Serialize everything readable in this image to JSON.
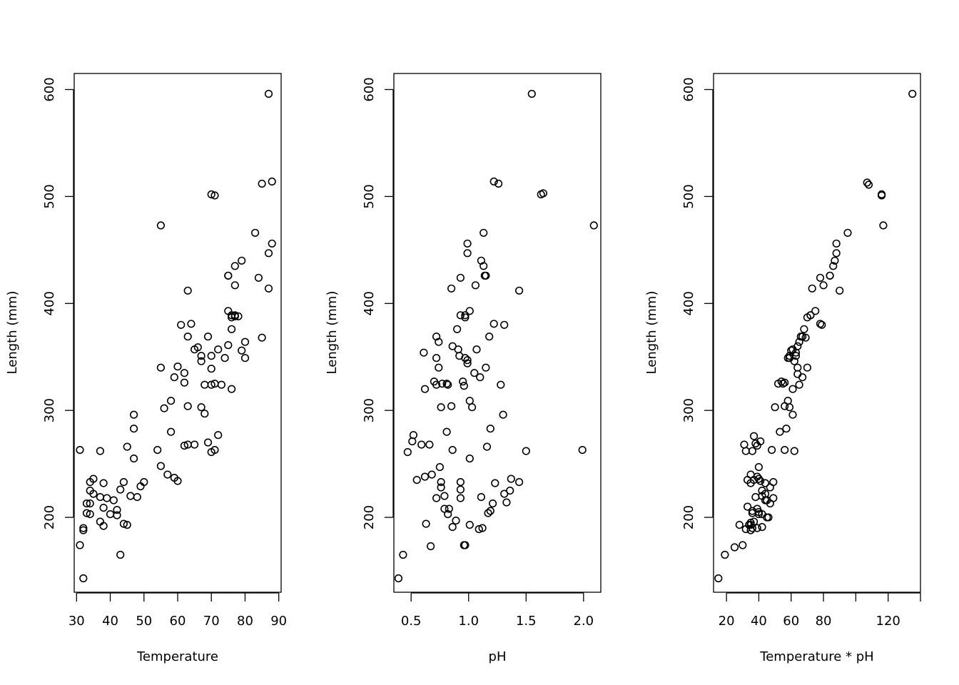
{
  "chart_data": [
    {
      "type": "scatter",
      "xlabel": "Temperature",
      "ylabel": "Length (mm)",
      "xlim": [
        29.3,
        90.7
      ],
      "ylim": [
        130,
        615
      ],
      "xticks": [
        30,
        40,
        50,
        60,
        70,
        80,
        90
      ],
      "xtick_labels": [
        "30",
        "40",
        "50",
        "60",
        "70",
        "80",
        "90"
      ],
      "yticks": [
        200,
        300,
        400,
        500,
        600
      ],
      "ytick_labels": [
        "200",
        "300",
        "400",
        "500",
        "600"
      ],
      "x": [
        87,
        70,
        71,
        55,
        88,
        85,
        83,
        88,
        87,
        79,
        77,
        75,
        75,
        84,
        77,
        87,
        63,
        75,
        77,
        76,
        76,
        64,
        61,
        76,
        80,
        69,
        85,
        78,
        63,
        77,
        66,
        65,
        72,
        70,
        75,
        74,
        80,
        79,
        67,
        58,
        60,
        62,
        67,
        70,
        76,
        71,
        70,
        73,
        68,
        67,
        55,
        59,
        62,
        63,
        58,
        56,
        68,
        47,
        47,
        31,
        54,
        45,
        37,
        70,
        72,
        69,
        63,
        62,
        71,
        65,
        50,
        60,
        55,
        46,
        44,
        57,
        59,
        35,
        38,
        41,
        43,
        48,
        34,
        34,
        37,
        45,
        47,
        49,
        39,
        35,
        33,
        34,
        38,
        32,
        37,
        34,
        33,
        40,
        32,
        42,
        42,
        44,
        31,
        38,
        43,
        32
      ],
      "y": [
        596,
        502,
        501,
        473,
        514,
        512,
        466,
        456,
        447,
        440,
        435,
        426,
        426,
        424,
        417,
        414,
        412,
        393,
        389,
        389,
        387,
        381,
        380,
        376,
        364,
        369,
        368,
        388,
        369,
        388,
        359,
        357,
        357,
        351,
        361,
        349,
        349,
        356,
        351,
        309,
        341,
        335,
        346,
        339,
        320,
        325,
        324,
        324,
        324,
        303,
        340,
        331,
        326,
        304,
        280,
        302,
        297,
        296,
        283,
        263,
        263,
        266,
        262,
        261,
        277,
        270,
        268,
        267,
        263,
        268,
        233,
        234,
        248,
        220,
        233,
        240,
        237,
        236,
        232,
        216,
        226,
        219,
        233,
        225,
        219,
        193,
        255,
        229,
        218,
        222,
        213,
        213,
        209,
        190,
        196,
        203,
        204,
        203,
        188,
        207,
        202,
        194,
        174,
        192,
        165,
        143
      ]
    },
    {
      "type": "scatter",
      "xlabel": "pH",
      "ylabel": "Length (mm)",
      "xlim": [
        0.35,
        2.15
      ],
      "ylim": [
        130,
        615
      ],
      "xticks": [
        0.5,
        1.0,
        1.5,
        2.0
      ],
      "xtick_labels": [
        "0.5",
        "1.0",
        "1.5",
        "2.0"
      ],
      "yticks": [
        200,
        300,
        400,
        500,
        600
      ],
      "ytick_labels": [
        "200",
        "300",
        "400",
        "500",
        "600"
      ],
      "x": [
        1.55,
        1.63,
        1.65,
        2.09,
        1.22,
        1.26,
        1.13,
        0.99,
        0.99,
        1.11,
        1.13,
        1.14,
        1.15,
        0.93,
        1.06,
        0.85,
        1.44,
        1.01,
        0.93,
        0.97,
        0.97,
        1.22,
        1.31,
        0.9,
        0.72,
        0.74,
        0.86,
        1.18,
        1.07,
        0.61,
        0.91,
        0.92,
        0.97,
        0.72,
        0.99,
        0.99,
        0.74,
        1.15,
        0.81,
        0.96,
        1.28,
        0.95,
        1.05,
        1.1,
        0.7,
        0.77,
        0.62,
        0.72,
        0.82,
        0.76,
        1.01,
        1.03,
        0.85,
        1.3,
        0.81,
        1.19,
        1.5,
        1.99,
        1.16,
        0.52,
        0.51,
        0.59,
        0.66,
        0.86,
        1.01,
        0.75,
        0.47,
        0.55,
        0.62,
        0.68,
        0.76,
        0.93,
        0.97,
        1.23,
        1.37,
        1.44,
        0.79,
        0.72,
        0.76,
        0.79,
        0.93,
        0.93,
        1.11,
        1.21,
        1.31,
        1.36,
        1.33,
        0.82,
        0.83,
        0.63,
        1.12,
        1.09,
        0.89,
        1.01,
        0.86,
        1.17,
        1.19,
        0.96,
        0.67,
        0.43,
        0.39
      ],
      "y": [
        596,
        502,
        503,
        473,
        514,
        512,
        466,
        456,
        447,
        440,
        435,
        426,
        426,
        424,
        417,
        414,
        412,
        393,
        389,
        389,
        387,
        381,
        380,
        376,
        369,
        364,
        360,
        369,
        357,
        354,
        357,
        351,
        349,
        349,
        347,
        344,
        340,
        340,
        325,
        323,
        324,
        327,
        335,
        331,
        327,
        325,
        320,
        324,
        324,
        303,
        309,
        303,
        304,
        296,
        280,
        283,
        262,
        263,
        266,
        277,
        271,
        268,
        268,
        263,
        255,
        247,
        261,
        235,
        238,
        240,
        233,
        233,
        174,
        232,
        236,
        233,
        220,
        218,
        228,
        208,
        218,
        226,
        219,
        213,
        222,
        225,
        214,
        203,
        208,
        194,
        190,
        189,
        197,
        193,
        191,
        204,
        206,
        174,
        173,
        165,
        143
      ]
    },
    {
      "type": "scatter",
      "xlabel": "Temperature * pH",
      "ylabel": "Length (mm)",
      "xlim": [
        12,
        140
      ],
      "ylim": [
        130,
        615
      ],
      "xticks": [
        20,
        40,
        60,
        80,
        100,
        120,
        140
      ],
      "xtick_labels": [
        "20",
        "40",
        "60",
        "80",
        "",
        "120",
        ""
      ],
      "yticks": [
        200,
        300,
        400,
        500,
        600
      ],
      "ytick_labels": [
        "200",
        "300",
        "400",
        "500",
        "600"
      ],
      "x": [
        135,
        107,
        108,
        116,
        116,
        117,
        95,
        88,
        88,
        87,
        86,
        84,
        84,
        78,
        80,
        73,
        90,
        75,
        72,
        72,
        70,
        78,
        79,
        68,
        66,
        67,
        65,
        69,
        64,
        61,
        60,
        63,
        59,
        63,
        58,
        59,
        62,
        70,
        64,
        64,
        67,
        54,
        56,
        55,
        65,
        61,
        52,
        56,
        58,
        50,
        59,
        61,
        57,
        53,
        48,
        56,
        62,
        37,
        41,
        38,
        39,
        31,
        32,
        36,
        40,
        35,
        40,
        44,
        37,
        41,
        39,
        33,
        35,
        49,
        47,
        42,
        42,
        49,
        38,
        44,
        45,
        47,
        33,
        36,
        36,
        44,
        40,
        42,
        46,
        45,
        37,
        40,
        35,
        42,
        34,
        39,
        35,
        39,
        36,
        32,
        19,
        35,
        28,
        25,
        30,
        15
      ],
      "y": [
        596,
        513,
        511,
        502,
        501,
        473,
        466,
        456,
        447,
        440,
        435,
        426,
        426,
        424,
        417,
        414,
        412,
        393,
        389,
        389,
        387,
        381,
        380,
        376,
        369,
        369,
        364,
        368,
        360,
        357,
        356,
        354,
        351,
        351,
        349,
        349,
        346,
        340,
        340,
        334,
        331,
        327,
        326,
        325,
        324,
        320,
        325,
        304,
        309,
        303,
        303,
        296,
        283,
        280,
        263,
        263,
        262,
        276,
        271,
        269,
        267,
        268,
        262,
        262,
        247,
        240,
        236,
        232,
        235,
        234,
        238,
        235,
        232,
        233,
        228,
        225,
        220,
        218,
        219,
        216,
        216,
        213,
        210,
        206,
        204,
        222,
        203,
        203,
        200,
        200,
        196,
        205,
        195,
        191,
        193,
        190,
        188,
        208,
        190,
        189,
        165,
        193,
        193,
        172,
        174,
        143
      ]
    }
  ]
}
